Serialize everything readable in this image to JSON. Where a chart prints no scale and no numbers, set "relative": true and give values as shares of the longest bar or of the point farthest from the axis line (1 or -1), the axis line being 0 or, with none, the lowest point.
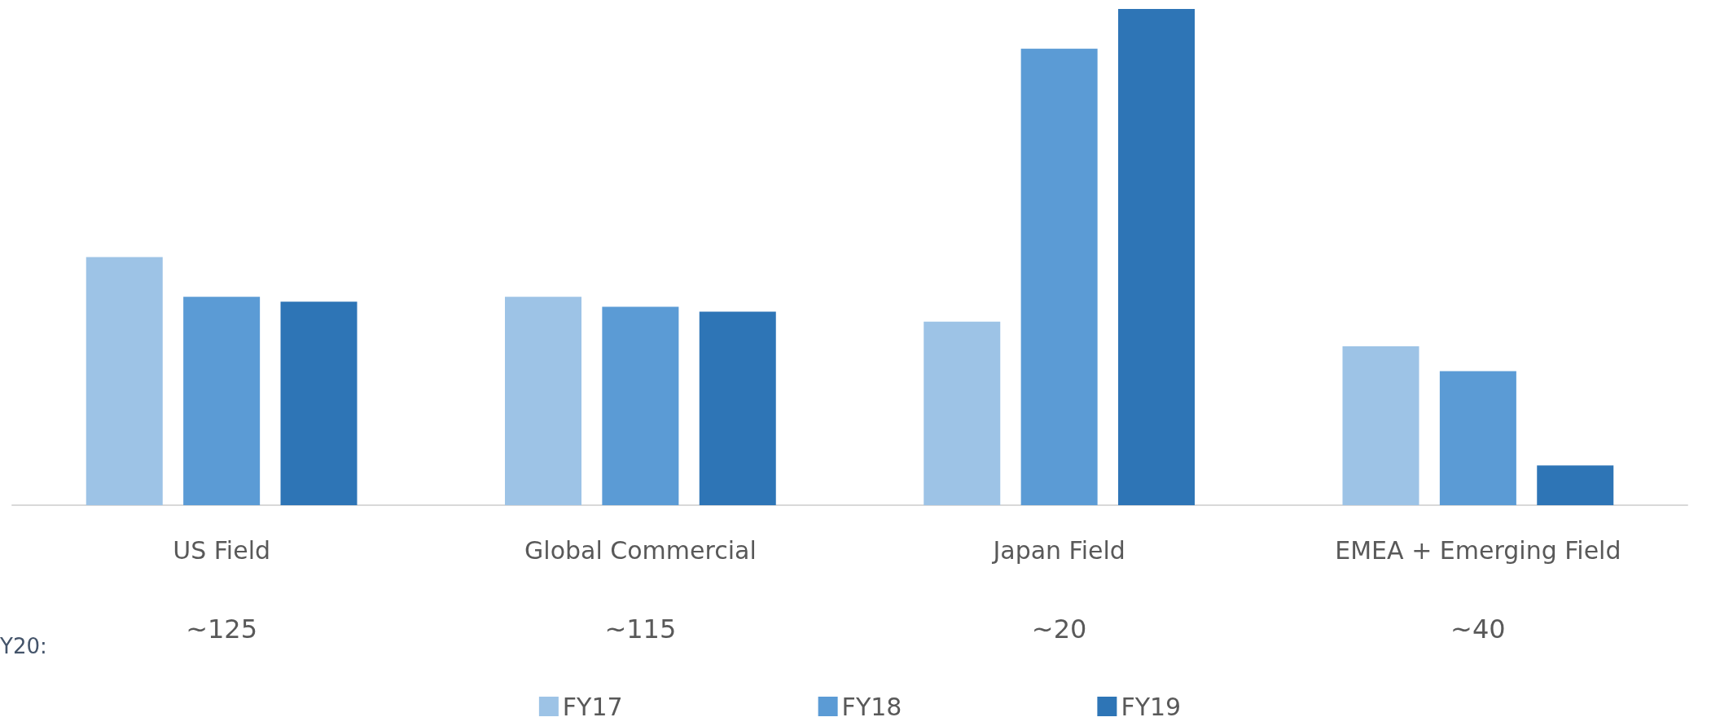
{
  "chart_data": {
    "type": "bar",
    "relative": true,
    "categories": [
      "US Field",
      "Global Commercial",
      "Japan Field",
      "EMEA + Emerging Field"
    ],
    "series": [
      {
        "name": "FY17",
        "color": "#9dc3e6",
        "values": [
          0.5,
          0.42,
          0.37,
          0.32
        ]
      },
      {
        "name": "FY18",
        "color": "#5b9bd5",
        "values": [
          0.42,
          0.4,
          0.92,
          0.27
        ]
      },
      {
        "name": "FY19",
        "color": "#2e75b6",
        "values": [
          0.41,
          0.39,
          1,
          0.08
        ]
      }
    ],
    "annotations": [
      "Y20:",
      "~125",
      "~115",
      "~20",
      "~40"
    ],
    "legend": "bottom"
  }
}
